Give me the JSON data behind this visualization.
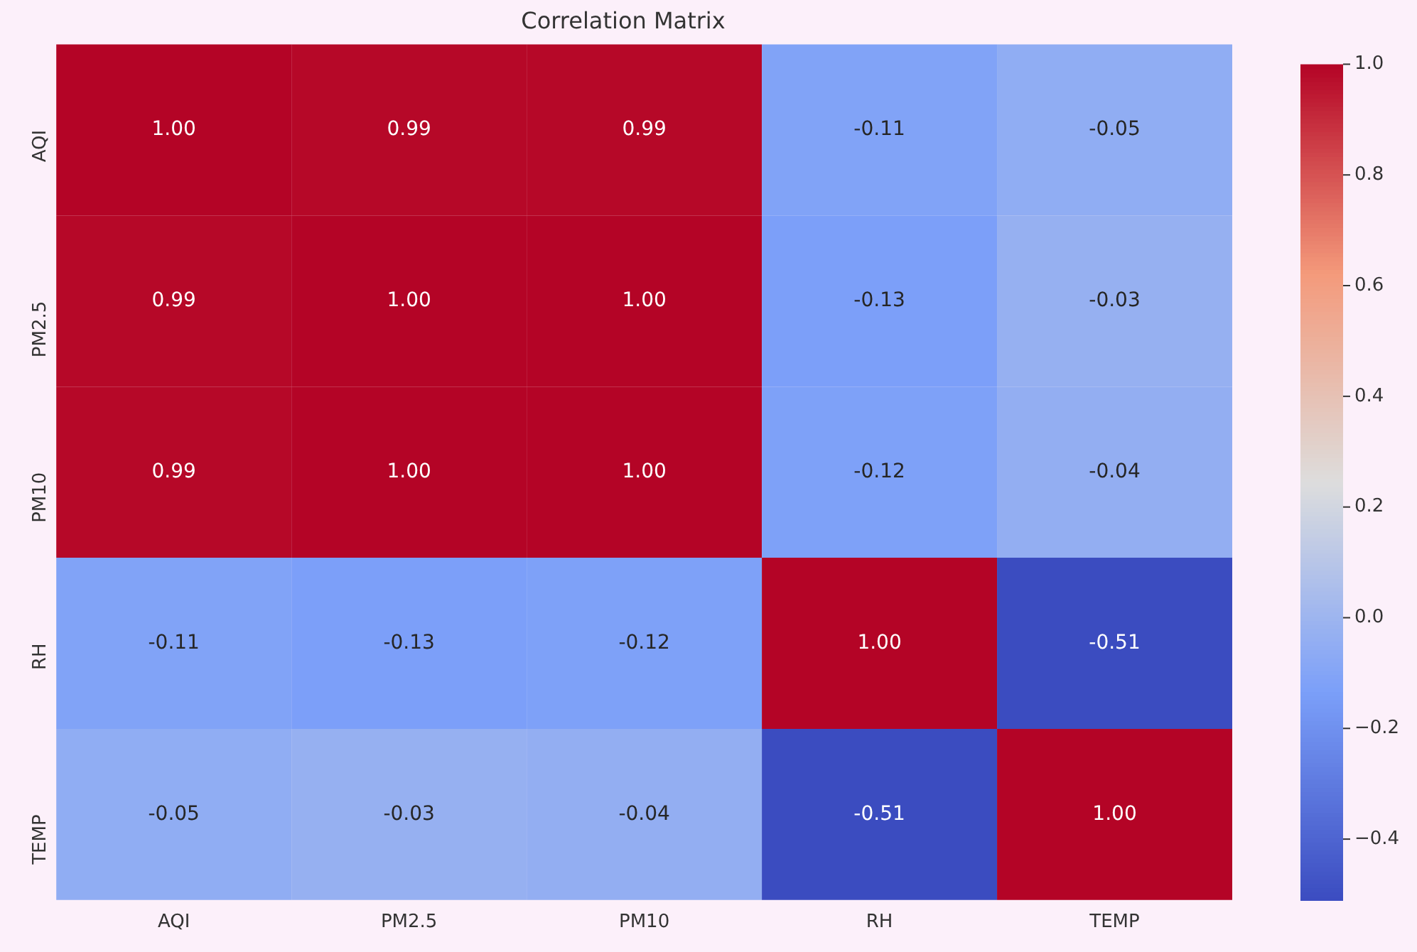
{
  "chart_data": {
    "type": "heatmap",
    "title": "Correlation Matrix",
    "categories": [
      "AQI",
      "PM2.5",
      "PM10",
      "RH",
      "TEMP"
    ],
    "y_categories": [
      "AQI",
      "PM2.5",
      "PM10",
      "RH",
      "TEMP"
    ],
    "cells": [
      [
        1.0,
        0.99,
        0.99,
        -0.11,
        -0.05
      ],
      [
        0.99,
        1.0,
        1.0,
        -0.13,
        -0.03
      ],
      [
        0.99,
        1.0,
        1.0,
        -0.12,
        -0.04
      ],
      [
        -0.11,
        -0.13,
        -0.12,
        1.0,
        -0.51
      ],
      [
        -0.05,
        -0.03,
        -0.04,
        -0.51,
        1.0
      ]
    ],
    "cell_labels": [
      [
        "1.00",
        "0.99",
        "0.99",
        "-0.11",
        "-0.05"
      ],
      [
        "0.99",
        "1.00",
        "1.00",
        "-0.13",
        "-0.03"
      ],
      [
        "0.99",
        "1.00",
        "1.00",
        "-0.12",
        "-0.04"
      ],
      [
        "-0.11",
        "-0.13",
        "-0.12",
        "1.00",
        "-0.51"
      ],
      [
        "-0.05",
        "-0.03",
        "-0.04",
        "-0.51",
        "1.00"
      ]
    ],
    "clim": [
      -0.51,
      1.0
    ],
    "cticks": [
      {
        "value": -0.4,
        "label": "−0.4"
      },
      {
        "value": -0.2,
        "label": "−0.2"
      },
      {
        "value": 0.0,
        "label": "0.0"
      },
      0.2,
      0.4,
      0.6,
      0.8,
      {
        "value": 1.0,
        "label": "1.0"
      }
    ]
  }
}
